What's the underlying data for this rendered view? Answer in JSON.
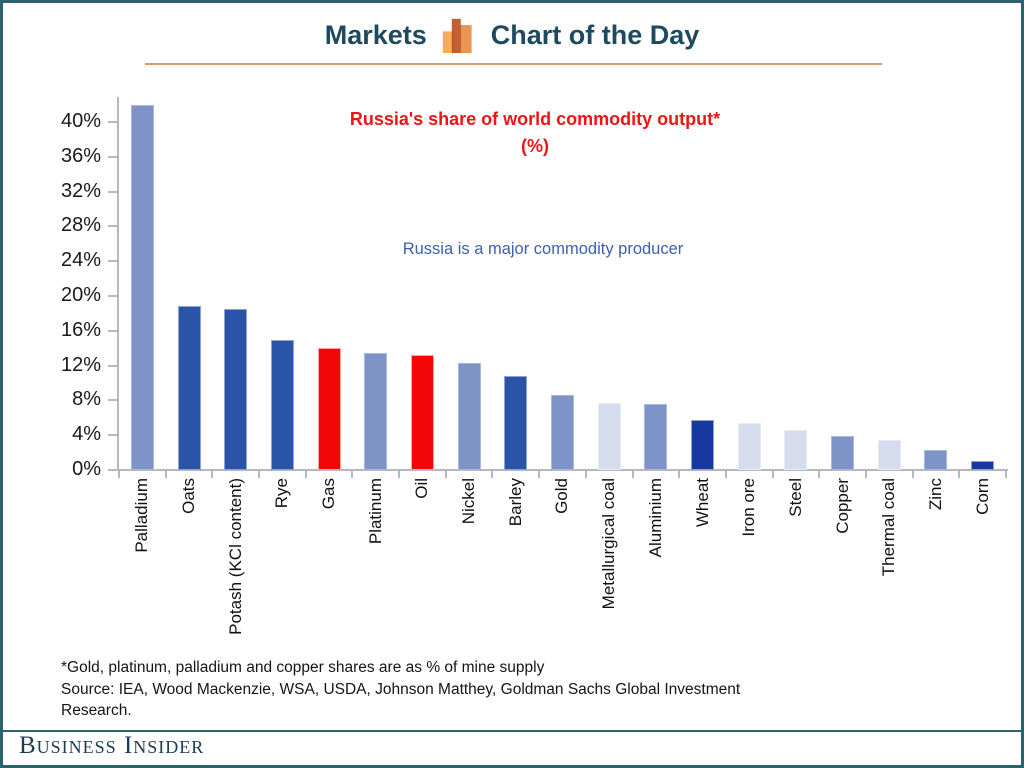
{
  "page": {
    "background": "#ffffff",
    "frame_border_color": "#2e6272"
  },
  "header": {
    "brand": "Markets",
    "title": "Chart of the Day",
    "text_color": "#1d4a5e",
    "accent_rule_color": "#d89a72",
    "logo_icon": "bar-chart-logo-icon",
    "logo_colors": [
      "#f4a950",
      "#b84a18",
      "#e78a3e"
    ]
  },
  "chart_data": {
    "type": "bar",
    "title": "Russia's share of world commodity output*",
    "title_unit_line": "(%)",
    "title_color": "#ee1515",
    "annotation": "Russia is a major commodity producer",
    "annotation_color": "#3d5fae",
    "categories": [
      "Palladium",
      "Oats",
      "Potash (KCl content)",
      "Rye",
      "Gas",
      "Platinum",
      "Oil",
      "Nickel",
      "Barley",
      "Gold",
      "Metallurgical coal",
      "Aluminium",
      "Wheat",
      "Iron ore",
      "Steel",
      "Copper",
      "Thermal coal",
      "Zinc",
      "Corn"
    ],
    "values": [
      42,
      18.8,
      18.5,
      15,
      14,
      13.5,
      13.2,
      12.3,
      10.8,
      8.6,
      7.7,
      7.6,
      5.8,
      5.4,
      4.6,
      3.9,
      3.4,
      2.3,
      1.0
    ],
    "bar_color_keys": [
      "medium",
      "dark",
      "dark",
      "dark",
      "red",
      "medium",
      "red",
      "medium",
      "dark",
      "medium",
      "light",
      "medium",
      "navy",
      "light",
      "light",
      "medium",
      "light",
      "medium",
      "navy"
    ],
    "palette": {
      "medium": "#7e94c6",
      "dark": "#2a54a7",
      "navy": "#17389f",
      "light": "#d4dcee",
      "red": "#f40606"
    },
    "bar_borders": {
      "medium": "#a9b8dc",
      "dark": "#8fa3d2",
      "navy": "#8fa3d2",
      "light": "#e6ebf6",
      "red": "#fda4a4"
    },
    "ytick_values": [
      0,
      4,
      8,
      12,
      16,
      20,
      24,
      28,
      32,
      36,
      40
    ],
    "ytick_labels": [
      "0%",
      "4%",
      "8%",
      "12%",
      "16%",
      "20%",
      "24%",
      "28%",
      "32%",
      "36%",
      "40%"
    ],
    "ylim": [
      0,
      42.8
    ],
    "xlabel": "",
    "ylabel": "",
    "grid": false,
    "legend": "none",
    "axis_color": "#b3b9c3",
    "tick_label_color": "#1a1a1a"
  },
  "footnote": {
    "line1": "*Gold, platinum, palladium and copper shares are as % of mine supply",
    "line2": "Source: IEA, Wood Mackenzie, WSA, USDA, Johnson Matthey, Goldman Sachs Global Investment",
    "line3": "Research."
  },
  "footer": {
    "logo_text": "Business Insider",
    "rule_color": "#2e6272",
    "text_color": "#1c3d50"
  }
}
